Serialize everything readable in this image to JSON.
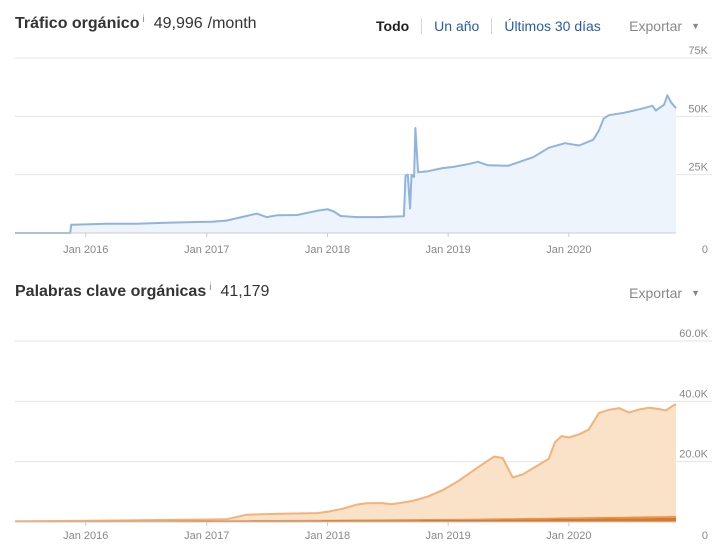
{
  "traffic": {
    "title": "Tráfico orgánico",
    "info": "i",
    "value": "49,996",
    "suffix": "/month",
    "ranges": [
      "Todo",
      "Un año",
      "Últimos 30 días"
    ],
    "active_range": "Todo",
    "export_label": "Exportar"
  },
  "keywords": {
    "title": "Palabras clave orgánicas",
    "info": "i",
    "value": "41,179",
    "export_label": "Exportar"
  },
  "colors": {
    "traffic_line": "#8fb4de",
    "traffic_fill": "#edf4fb",
    "kw_fill": "#f9e2c8",
    "kw_line": "#f3b27a",
    "kw_dark": "#d9772a",
    "kw_mid": "#e8954a",
    "grid": "#e4e4e4",
    "axis": "#cccccc",
    "link": "#2a5aa8"
  },
  "chart_data": [
    {
      "type": "area",
      "title": "Tráfico orgánico",
      "x_range": [
        "2015-06-01",
        "2020-11-20"
      ],
      "ylim": [
        0,
        75000
      ],
      "y_ticks": [
        {
          "value": 0,
          "label": "0"
        },
        {
          "value": 25000,
          "label": "25K"
        },
        {
          "value": 50000,
          "label": "50K"
        },
        {
          "value": 75000,
          "label": "75K"
        }
      ],
      "x_ticks": [
        {
          "date": "2016-01-01",
          "label": "Jan 2016"
        },
        {
          "date": "2017-01-01",
          "label": "Jan 2017"
        },
        {
          "date": "2018-01-01",
          "label": "Jan 2018"
        },
        {
          "date": "2019-01-01",
          "label": "Jan 2019"
        },
        {
          "date": "2020-01-01",
          "label": "Jan 2020"
        }
      ],
      "grid": true,
      "series": [
        {
          "points": [
            [
              "2015-06-01",
              0
            ],
            [
              "2015-11-15",
              0
            ],
            [
              "2015-11-18",
              3500
            ],
            [
              "2016-01-01",
              3700
            ],
            [
              "2016-03-01",
              4000
            ],
            [
              "2016-06-01",
              4000
            ],
            [
              "2016-09-01",
              4400
            ],
            [
              "2016-12-01",
              4700
            ],
            [
              "2017-01-15",
              4800
            ],
            [
              "2017-03-01",
              5300
            ],
            [
              "2017-05-01",
              7300
            ],
            [
              "2017-06-01",
              8300
            ],
            [
              "2017-07-01",
              6800
            ],
            [
              "2017-08-01",
              7600
            ],
            [
              "2017-10-01",
              7700
            ],
            [
              "2017-12-01",
              9500
            ],
            [
              "2018-01-01",
              10200
            ],
            [
              "2018-01-20",
              9200
            ],
            [
              "2018-02-10",
              7300
            ],
            [
              "2018-04-01",
              6800
            ],
            [
              "2018-06-01",
              6800
            ],
            [
              "2018-08-20",
              7200
            ],
            [
              "2018-08-25",
              24500
            ],
            [
              "2018-09-01",
              25000
            ],
            [
              "2018-09-08",
              10500
            ],
            [
              "2018-09-12",
              25000
            ],
            [
              "2018-09-20",
              24000
            ],
            [
              "2018-09-24",
              45000
            ],
            [
              "2018-10-02",
              26000
            ],
            [
              "2018-11-01",
              26500
            ],
            [
              "2018-12-15",
              27800
            ],
            [
              "2019-01-15",
              28300
            ],
            [
              "2019-03-01",
              29500
            ],
            [
              "2019-04-01",
              30500
            ],
            [
              "2019-05-01",
              29000
            ],
            [
              "2019-07-01",
              28800
            ],
            [
              "2019-08-15",
              31000
            ],
            [
              "2019-09-15",
              32500
            ],
            [
              "2019-11-01",
              36500
            ],
            [
              "2019-12-20",
              38500
            ],
            [
              "2020-02-01",
              37500
            ],
            [
              "2020-03-15",
              40000
            ],
            [
              "2020-04-01",
              44000
            ],
            [
              "2020-04-15",
              49000
            ],
            [
              "2020-05-01",
              50500
            ],
            [
              "2020-06-15",
              51500
            ],
            [
              "2020-08-01",
              53000
            ],
            [
              "2020-09-10",
              54500
            ],
            [
              "2020-09-20",
              52500
            ],
            [
              "2020-10-15",
              55000
            ],
            [
              "2020-10-25",
              59000
            ],
            [
              "2020-11-05",
              56000
            ],
            [
              "2020-11-20",
              53500
            ]
          ]
        }
      ]
    },
    {
      "type": "area",
      "title": "Palabras clave orgánicas",
      "x_range": [
        "2015-06-01",
        "2020-11-20"
      ],
      "ylim": [
        0,
        60000
      ],
      "y_ticks": [
        {
          "value": 0,
          "label": "0"
        },
        {
          "value": 20000,
          "label": "20.0K"
        },
        {
          "value": 40000,
          "label": "40.0K"
        },
        {
          "value": 60000,
          "label": "60.0K"
        }
      ],
      "x_ticks": [
        {
          "date": "2016-01-01",
          "label": "Jan 2016"
        },
        {
          "date": "2017-01-01",
          "label": "Jan 2017"
        },
        {
          "date": "2018-01-01",
          "label": "Jan 2018"
        },
        {
          "date": "2019-01-01",
          "label": "Jan 2019"
        },
        {
          "date": "2020-01-01",
          "label": "Jan 2020"
        }
      ],
      "grid": true,
      "stacked": true,
      "series": [
        {
          "color_key": "kw_dark",
          "points": [
            [
              "2015-06-01",
              150
            ],
            [
              "2016-06-01",
              250
            ],
            [
              "2017-06-01",
              400
            ],
            [
              "2018-06-01",
              550
            ],
            [
              "2019-06-01",
              800
            ],
            [
              "2020-06-01",
              1200
            ],
            [
              "2020-11-20",
              1400
            ]
          ]
        },
        {
          "color_key": "kw_mid",
          "points": [
            [
              "2015-06-01",
              100
            ],
            [
              "2016-06-01",
              200
            ],
            [
              "2017-06-01",
              250
            ],
            [
              "2018-06-01",
              300
            ],
            [
              "2019-06-01",
              400
            ],
            [
              "2020-06-01",
              550
            ],
            [
              "2020-11-20",
              600
            ]
          ]
        },
        {
          "color_key": "kw_line",
          "points": [
            [
              "2015-06-01",
              0
            ],
            [
              "2015-12-01",
              0
            ],
            [
              "2016-06-01",
              100
            ],
            [
              "2017-01-01",
              250
            ],
            [
              "2017-03-01",
              300
            ],
            [
              "2017-05-01",
              1800
            ],
            [
              "2017-06-15",
              1900
            ],
            [
              "2017-09-01",
              2100
            ],
            [
              "2017-12-01",
              2200
            ],
            [
              "2018-01-01",
              2600
            ],
            [
              "2018-02-15",
              3600
            ],
            [
              "2018-04-01",
              5000
            ],
            [
              "2018-05-01",
              5400
            ],
            [
              "2018-06-15",
              5400
            ],
            [
              "2018-07-15",
              5000
            ],
            [
              "2018-09-15",
              6000
            ],
            [
              "2018-11-01",
              7500
            ],
            [
              "2018-12-15",
              9500
            ],
            [
              "2019-02-01",
              12500
            ],
            [
              "2019-04-01",
              17000
            ],
            [
              "2019-05-20",
              20500
            ],
            [
              "2019-06-15",
              20000
            ],
            [
              "2019-07-15",
              13500
            ],
            [
              "2019-08-15",
              14500
            ],
            [
              "2019-09-15",
              16500
            ],
            [
              "2019-11-01",
              19500
            ],
            [
              "2019-11-20",
              25000
            ],
            [
              "2019-12-10",
              27000
            ],
            [
              "2020-01-01",
              26500
            ],
            [
              "2020-02-01",
              27500
            ],
            [
              "2020-03-01",
              29000
            ],
            [
              "2020-04-01",
              34500
            ],
            [
              "2020-05-01",
              35500
            ],
            [
              "2020-06-01",
              36000
            ],
            [
              "2020-07-01",
              34500
            ],
            [
              "2020-08-01",
              35500
            ],
            [
              "2020-09-01",
              36000
            ],
            [
              "2020-10-01",
              35500
            ],
            [
              "2020-10-20",
              35000
            ],
            [
              "2020-11-10",
              36500
            ],
            [
              "2020-11-20",
              37000
            ]
          ]
        }
      ]
    }
  ]
}
